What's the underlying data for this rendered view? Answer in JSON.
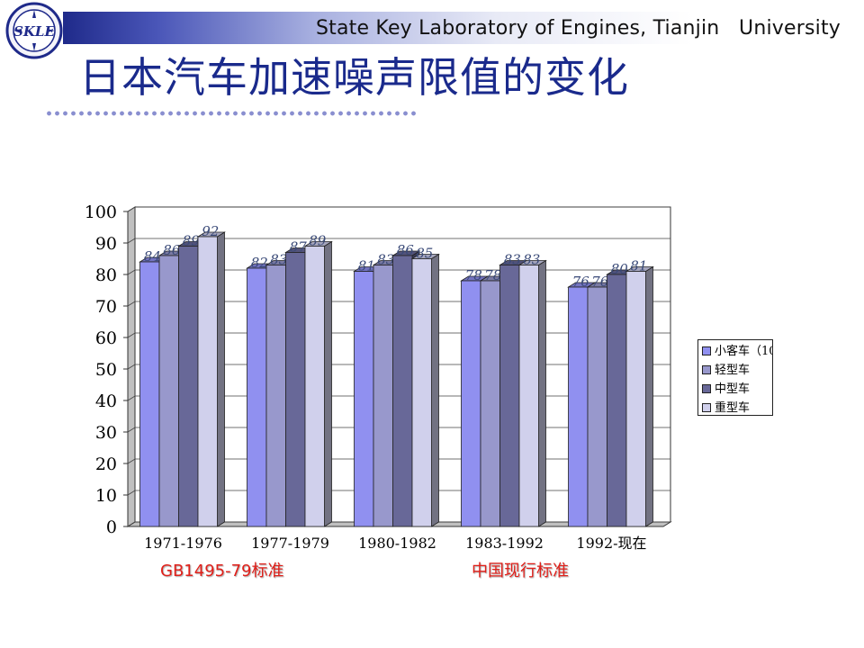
{
  "header": {
    "lab_name": "State Key Laboratory of Engines, Tianjin   University",
    "logo_text": "SKLE",
    "slide_title": "日本汽车加速噪声限值的变化"
  },
  "annotations": {
    "gb_standard": "GB1495-79标准",
    "china_current": "中国现行标准"
  },
  "colors": {
    "series": [
      "#9090f0",
      "#9898cc",
      "#686898",
      "#d0d0ec"
    ],
    "wall": "#c0c0c0",
    "std_label": "#e0201a",
    "title": "#1a2a8c"
  },
  "chart_data": {
    "type": "bar",
    "title": "",
    "xlabel": "",
    "ylabel": "",
    "ylim": [
      0,
      100
    ],
    "yticks": [
      "0",
      "10",
      "20",
      "30",
      "40",
      "50",
      "60",
      "70",
      "80",
      "90",
      "100"
    ],
    "grid": "horizontal",
    "legend_position": "right",
    "categories": [
      "1971-1976",
      "1977-1979",
      "1980-1982",
      "1983-1992",
      "1992-现在"
    ],
    "series": [
      {
        "name": "小客车（10",
        "values": [
          84,
          82,
          81,
          78,
          76
        ]
      },
      {
        "name": "轻型车",
        "values": [
          86,
          83,
          83,
          78,
          76
        ]
      },
      {
        "name": "中型车",
        "values": [
          89,
          87,
          86,
          83,
          80
        ]
      },
      {
        "name": "重型车",
        "values": [
          92,
          89,
          85,
          83,
          81
        ]
      }
    ]
  }
}
